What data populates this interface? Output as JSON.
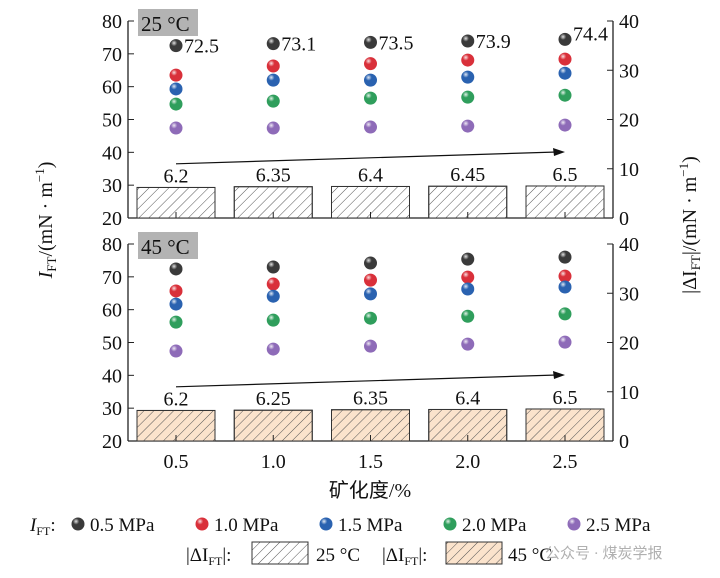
{
  "chart_data": [
    {
      "type": "scatter+bar",
      "panel_label": "25 °C",
      "x": [
        0.5,
        1.0,
        1.5,
        2.0,
        2.5
      ],
      "xticklabels": [
        "0.5",
        "1.0",
        "1.5",
        "2.0",
        "2.5"
      ],
      "ylim": [
        20,
        80
      ],
      "y2lim": [
        0,
        40
      ],
      "yticks": [
        20,
        30,
        40,
        50,
        60,
        70,
        80
      ],
      "y2ticks": [
        0,
        10,
        20,
        30,
        40
      ],
      "series": [
        {
          "name": "0.5 MPa",
          "color": "#3a3a3a",
          "values": [
            72.5,
            73.1,
            73.5,
            73.9,
            74.4
          ],
          "labels": [
            "72.5",
            "73.1",
            "73.5",
            "73.9",
            "74.4"
          ]
        },
        {
          "name": "1.0 MPa",
          "color": "#d9303a",
          "values": [
            63.5,
            66.3,
            67.0,
            68.1,
            68.4
          ]
        },
        {
          "name": "1.5 MPa",
          "color": "#2a62b0",
          "values": [
            59.3,
            62.0,
            62.0,
            62.9,
            64.1
          ]
        },
        {
          "name": "2.0 MPa",
          "color": "#2f9e5c",
          "values": [
            54.7,
            55.6,
            56.5,
            56.8,
            57.4
          ]
        },
        {
          "name": "2.5 MPa",
          "color": "#8e6bb8",
          "values": [
            47.4,
            47.4,
            47.7,
            48.0,
            48.3
          ]
        }
      ],
      "bars": {
        "values": [
          6.2,
          6.35,
          6.4,
          6.45,
          6.5
        ],
        "labels": [
          "6.2",
          "6.35",
          "6.4",
          "6.45",
          "6.5"
        ],
        "fill": "#ffffff"
      }
    },
    {
      "type": "scatter+bar",
      "panel_label": "45 °C",
      "x": [
        0.5,
        1.0,
        1.5,
        2.0,
        2.5
      ],
      "xticklabels": [
        "0.5",
        "1.0",
        "1.5",
        "2.0",
        "2.5"
      ],
      "ylim": [
        20,
        80
      ],
      "y2lim": [
        0,
        40
      ],
      "yticks": [
        20,
        30,
        40,
        50,
        60,
        70,
        80
      ],
      "y2ticks": [
        0,
        10,
        20,
        30,
        40
      ],
      "series": [
        {
          "name": "0.5 MPa",
          "color": "#3a3a3a",
          "values": [
            72.4,
            73.0,
            74.2,
            75.4,
            76.0
          ]
        },
        {
          "name": "1.0 MPa",
          "color": "#d9303a",
          "values": [
            65.7,
            67.8,
            69.0,
            69.9,
            70.2
          ]
        },
        {
          "name": "1.5 MPa",
          "color": "#2a62b0",
          "values": [
            61.7,
            64.1,
            64.8,
            66.3,
            66.9
          ]
        },
        {
          "name": "2.0 MPa",
          "color": "#2f9e5c",
          "values": [
            56.2,
            56.8,
            57.4,
            58.0,
            58.7
          ]
        },
        {
          "name": "2.5 MPa",
          "color": "#8e6bb8",
          "values": [
            47.4,
            48.0,
            48.9,
            49.5,
            50.1
          ]
        }
      ],
      "bars": {
        "values": [
          6.2,
          6.25,
          6.35,
          6.4,
          6.5
        ],
        "labels": [
          "6.2",
          "6.25",
          "6.35",
          "6.4",
          "6.5"
        ],
        "fill": "#fbe3cc"
      }
    }
  ],
  "axes": {
    "xlabel": "矿化度/%",
    "ylabel_main": "I",
    "ylabel_sub": "FT",
    "ylabel_unit": "/(mN · m",
    "ylabel_exp": "−1",
    "ylabel_close": ")",
    "y2label_main": "|ΔI",
    "y2label_sub": "FT",
    "y2label_unit": "|/(mN · m",
    "y2label_exp": "−1",
    "y2label_close": ")"
  },
  "legend": {
    "scatter_prefix_main": "I",
    "scatter_prefix_sub": "FT",
    "scatter_prefix_colon": ":",
    "bar_prefix_main": "|ΔI",
    "bar_prefix_sub": "FT",
    "bar_prefix_close": "|:",
    "bar_25": "25 °C",
    "bar_45": "45 °C"
  },
  "watermark": "公众号 · 煤炭学报"
}
